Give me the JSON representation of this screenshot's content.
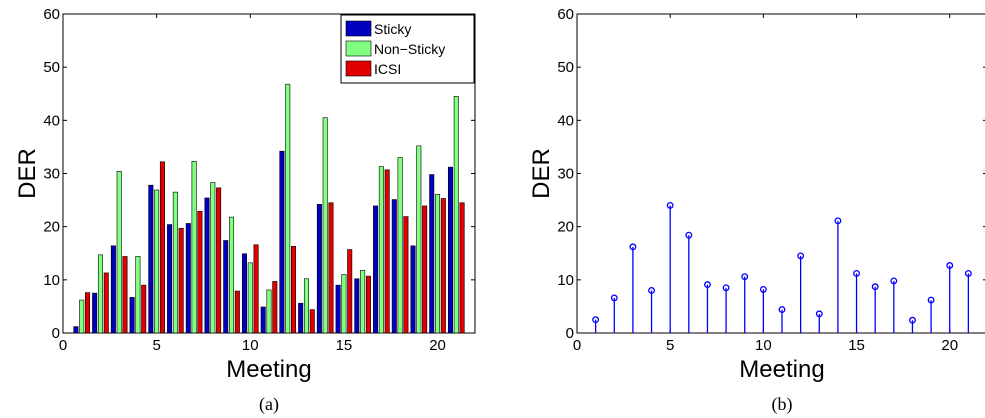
{
  "chart_data": [
    {
      "type": "bar",
      "caption": "(a)",
      "xlabel": "Meeting",
      "ylabel": "DER",
      "xlim": [
        0,
        22
      ],
      "ylim": [
        0,
        60
      ],
      "xticks": [
        0,
        5,
        10,
        15,
        20
      ],
      "yticks": [
        0,
        10,
        20,
        30,
        40,
        50,
        60
      ],
      "grid": false,
      "legend": "top-right",
      "categories": [
        1,
        2,
        3,
        4,
        5,
        6,
        7,
        8,
        9,
        10,
        11,
        12,
        13,
        14,
        15,
        16,
        17,
        18,
        19,
        20,
        21
      ],
      "series": [
        {
          "name": "Sticky",
          "color": "#0000c0",
          "values": [
            1.2,
            7.5,
            16.4,
            6.7,
            27.8,
            20.4,
            20.6,
            25.4,
            17.4,
            14.9,
            4.9,
            34.2,
            5.6,
            24.2,
            9.0,
            10.2,
            23.9,
            25.1,
            16.4,
            29.8,
            31.2
          ]
        },
        {
          "name": "Non−Sticky",
          "color": "#80ff80",
          "values": [
            6.2,
            14.7,
            30.4,
            14.4,
            26.9,
            26.5,
            32.3,
            28.3,
            21.8,
            13.2,
            8.1,
            46.8,
            10.2,
            40.5,
            11.0,
            11.8,
            31.3,
            33.0,
            35.2,
            26.1,
            44.5
          ]
        },
        {
          "name": "ICSI",
          "color": "#e00000",
          "values": [
            7.6,
            11.3,
            14.4,
            9.0,
            32.2,
            19.7,
            22.9,
            27.3,
            7.9,
            16.6,
            9.7,
            16.3,
            4.4,
            24.5,
            15.7,
            10.7,
            30.7,
            21.9,
            23.9,
            25.3,
            24.5
          ]
        }
      ]
    },
    {
      "type": "stem",
      "caption": "(b)",
      "xlabel": "Meeting",
      "ylabel": "DER",
      "xlim": [
        0,
        22
      ],
      "ylim": [
        0,
        60
      ],
      "xticks": [
        0,
        5,
        10,
        15,
        20
      ],
      "yticks": [
        0,
        10,
        20,
        30,
        40,
        50,
        60
      ],
      "grid": false,
      "color": "#0000ff",
      "x": [
        1,
        2,
        3,
        4,
        5,
        6,
        7,
        8,
        9,
        10,
        11,
        12,
        13,
        14,
        15,
        16,
        17,
        18,
        19,
        20,
        21
      ],
      "values": [
        2.5,
        6.6,
        16.2,
        8.0,
        24.0,
        18.4,
        9.1,
        8.5,
        10.6,
        8.2,
        4.4,
        14.5,
        3.6,
        21.1,
        11.2,
        8.7,
        9.8,
        2.4,
        6.2,
        12.7,
        11.2
      ]
    }
  ]
}
